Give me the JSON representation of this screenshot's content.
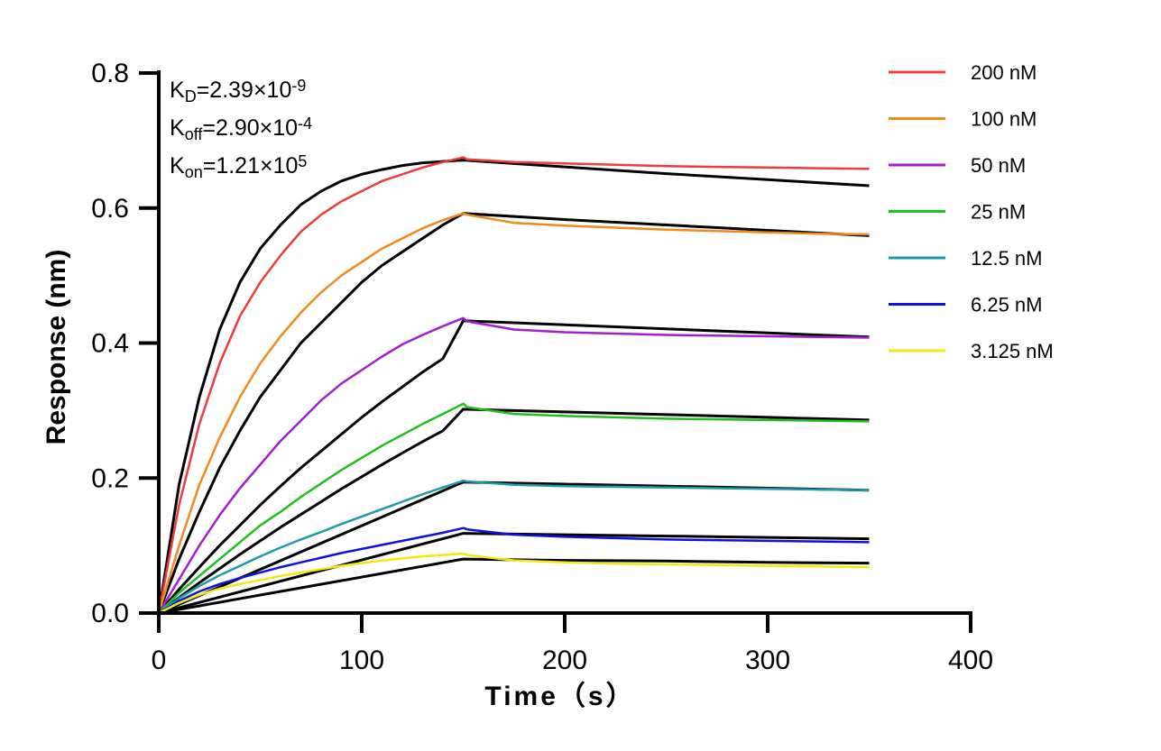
{
  "chart_data": {
    "type": "line",
    "title": "",
    "xlabel": "Time（s）",
    "ylabel": "Response (nm)",
    "xlim": [
      0,
      400
    ],
    "ylim": [
      0,
      0.8
    ],
    "xticks": [
      0,
      100,
      200,
      300,
      400
    ],
    "xtick_labels": [
      "0",
      "100",
      "200",
      "300",
      "400"
    ],
    "yticks": [
      0,
      0.2,
      0.4,
      0.6,
      0.8
    ],
    "ytick_labels": [
      "0.0",
      "0.2",
      "0.4",
      "0.6",
      "0.8"
    ],
    "grid": false,
    "legend_position": "top-right",
    "annotations": [
      {
        "base": "K",
        "sub": "D",
        "rest": "=2.39×10",
        "sup": "-9"
      },
      {
        "base": "K",
        "sub": "off",
        "rest": "=2.90×10",
        "sup": "-4"
      },
      {
        "base": "K",
        "sub": "on",
        "rest": "=1.21×10",
        "sup": "5"
      }
    ],
    "series": [
      {
        "name": "200 nM",
        "color": "#ee3b3b",
        "x": [
          0,
          10,
          20,
          30,
          40,
          50,
          60,
          70,
          80,
          90,
          100,
          110,
          120,
          130,
          140,
          150,
          152,
          175,
          200,
          225,
          250,
          275,
          300,
          325,
          350
        ],
        "y": [
          0,
          0.16,
          0.28,
          0.37,
          0.44,
          0.49,
          0.53,
          0.565,
          0.59,
          0.61,
          0.625,
          0.64,
          0.65,
          0.66,
          0.668,
          0.675,
          0.672,
          0.668,
          0.666,
          0.664,
          0.662,
          0.661,
          0.66,
          0.659,
          0.658
        ]
      },
      {
        "name": "100 nM",
        "color": "#f08a1c",
        "x": [
          0,
          10,
          20,
          30,
          40,
          50,
          60,
          70,
          80,
          90,
          100,
          110,
          120,
          130,
          140,
          150,
          152,
          175,
          200,
          225,
          250,
          275,
          300,
          325,
          350
        ],
        "y": [
          0,
          0.1,
          0.19,
          0.26,
          0.32,
          0.37,
          0.41,
          0.445,
          0.475,
          0.5,
          0.52,
          0.54,
          0.555,
          0.57,
          0.582,
          0.592,
          0.59,
          0.578,
          0.574,
          0.571,
          0.568,
          0.566,
          0.564,
          0.562,
          0.561
        ]
      },
      {
        "name": "50 nM",
        "color": "#a020d0",
        "x": [
          0,
          10,
          20,
          30,
          40,
          50,
          60,
          70,
          80,
          90,
          100,
          110,
          120,
          130,
          140,
          150,
          152,
          175,
          200,
          225,
          250,
          275,
          300,
          325,
          350
        ],
        "y": [
          0,
          0.05,
          0.1,
          0.145,
          0.185,
          0.22,
          0.255,
          0.285,
          0.315,
          0.34,
          0.36,
          0.38,
          0.398,
          0.412,
          0.425,
          0.437,
          0.432,
          0.42,
          0.416,
          0.414,
          0.412,
          0.411,
          0.41,
          0.409,
          0.408
        ]
      },
      {
        "name": "25 nM",
        "color": "#1fbf1f",
        "x": [
          0,
          10,
          20,
          30,
          40,
          50,
          60,
          70,
          80,
          90,
          100,
          110,
          120,
          130,
          140,
          150,
          152,
          175,
          200,
          225,
          250,
          275,
          300,
          325,
          350
        ],
        "y": [
          0,
          0.03,
          0.055,
          0.08,
          0.105,
          0.13,
          0.15,
          0.172,
          0.192,
          0.212,
          0.23,
          0.248,
          0.264,
          0.28,
          0.295,
          0.31,
          0.305,
          0.295,
          0.292,
          0.29,
          0.288,
          0.287,
          0.286,
          0.285,
          0.284
        ]
      },
      {
        "name": "12.5 nM",
        "color": "#1e9aa8",
        "x": [
          0,
          10,
          20,
          30,
          40,
          50,
          60,
          70,
          80,
          90,
          100,
          110,
          120,
          130,
          140,
          150,
          152,
          175,
          200,
          225,
          250,
          275,
          300,
          325,
          350
        ],
        "y": [
          0,
          0.022,
          0.04,
          0.056,
          0.07,
          0.084,
          0.097,
          0.109,
          0.12,
          0.132,
          0.143,
          0.154,
          0.165,
          0.176,
          0.186,
          0.196,
          0.195,
          0.19,
          0.188,
          0.187,
          0.186,
          0.185,
          0.184,
          0.183,
          0.182
        ]
      },
      {
        "name": "6.25 nM",
        "color": "#1010e0",
        "x": [
          0,
          10,
          20,
          30,
          40,
          50,
          60,
          70,
          80,
          90,
          100,
          110,
          120,
          130,
          140,
          150,
          152,
          175,
          200,
          225,
          250,
          275,
          300,
          325,
          350
        ],
        "y": [
          0,
          0.018,
          0.032,
          0.043,
          0.052,
          0.06,
          0.068,
          0.075,
          0.082,
          0.089,
          0.095,
          0.101,
          0.107,
          0.113,
          0.119,
          0.126,
          0.124,
          0.116,
          0.113,
          0.111,
          0.109,
          0.108,
          0.107,
          0.106,
          0.105
        ]
      },
      {
        "name": "3.125 nM",
        "color": "#f0ea10",
        "x": [
          0,
          10,
          20,
          30,
          40,
          50,
          60,
          70,
          80,
          90,
          100,
          110,
          120,
          130,
          140,
          150,
          152,
          175,
          200,
          225,
          250,
          275,
          300,
          325,
          350
        ],
        "y": [
          0,
          0.015,
          0.027,
          0.036,
          0.043,
          0.049,
          0.055,
          0.06,
          0.065,
          0.07,
          0.074,
          0.078,
          0.081,
          0.084,
          0.086,
          0.088,
          0.086,
          0.078,
          0.075,
          0.073,
          0.072,
          0.071,
          0.07,
          0.069,
          0.068
        ]
      }
    ],
    "fits": [
      {
        "color": "#000000",
        "x": [
          0,
          10,
          20,
          30,
          40,
          50,
          60,
          70,
          80,
          90,
          100,
          110,
          120,
          130,
          140,
          150,
          200,
          250,
          300,
          350
        ],
        "y": [
          0,
          0.19,
          0.32,
          0.42,
          0.49,
          0.54,
          0.575,
          0.605,
          0.625,
          0.64,
          0.65,
          0.657,
          0.663,
          0.667,
          0.669,
          0.671,
          0.661,
          0.651,
          0.642,
          0.633
        ]
      },
      {
        "color": "#000000",
        "x": [
          0,
          10,
          20,
          30,
          40,
          50,
          60,
          70,
          80,
          90,
          100,
          110,
          120,
          130,
          140,
          150,
          200,
          250,
          300,
          350
        ],
        "y": [
          0,
          0.08,
          0.15,
          0.215,
          0.27,
          0.32,
          0.36,
          0.4,
          0.43,
          0.46,
          0.49,
          0.515,
          0.535,
          0.555,
          0.575,
          0.592,
          0.583,
          0.575,
          0.567,
          0.559
        ]
      },
      {
        "color": "#000000",
        "x": [
          0,
          10,
          20,
          30,
          40,
          50,
          60,
          70,
          80,
          90,
          100,
          110,
          120,
          130,
          140,
          150,
          200,
          250,
          300,
          350
        ],
        "y": [
          0,
          0.035,
          0.068,
          0.1,
          0.13,
          0.16,
          0.188,
          0.215,
          0.24,
          0.265,
          0.29,
          0.313,
          0.335,
          0.357,
          0.377,
          0.433,
          0.427,
          0.421,
          0.415,
          0.409
        ]
      },
      {
        "color": "#000000",
        "x": [
          0,
          10,
          20,
          30,
          40,
          50,
          60,
          70,
          80,
          90,
          100,
          110,
          120,
          130,
          140,
          150,
          200,
          250,
          300,
          350
        ],
        "y": [
          0,
          0.023,
          0.045,
          0.066,
          0.087,
          0.107,
          0.127,
          0.146,
          0.165,
          0.184,
          0.202,
          0.22,
          0.237,
          0.254,
          0.27,
          0.302,
          0.298,
          0.294,
          0.29,
          0.286
        ]
      },
      {
        "color": "#000000",
        "x": [
          0,
          150,
          200,
          250,
          300,
          350
        ],
        "y": [
          0,
          0.194,
          0.191,
          0.188,
          0.185,
          0.182
        ]
      },
      {
        "color": "#000000",
        "x": [
          0,
          150,
          200,
          250,
          300,
          350
        ],
        "y": [
          0,
          0.118,
          0.116,
          0.114,
          0.112,
          0.11
        ]
      },
      {
        "color": "#000000",
        "x": [
          0,
          150,
          200,
          250,
          300,
          350
        ],
        "y": [
          0,
          0.08,
          0.078,
          0.077,
          0.075,
          0.074
        ]
      }
    ]
  }
}
